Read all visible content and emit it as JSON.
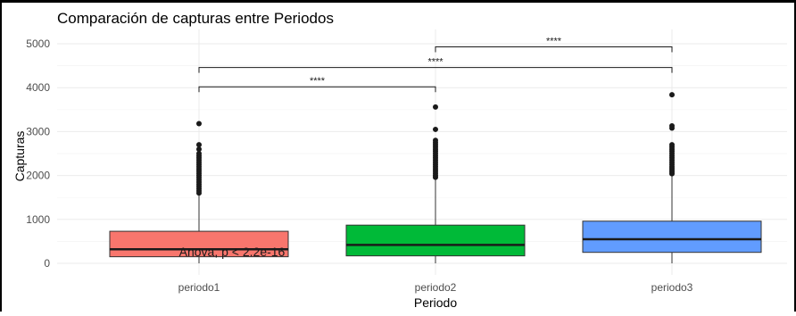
{
  "chart_data": {
    "type": "box",
    "title": "Comparación de capturas entre Periodos",
    "xlabel": "Periodo",
    "ylabel": "Capturas",
    "ylim": [
      0,
      5000
    ],
    "y_ticks": [
      0,
      1000,
      2000,
      3000,
      4000,
      5000
    ],
    "grid": true,
    "categories": [
      "periodo1",
      "periodo2",
      "periodo3"
    ],
    "boxes": [
      {
        "category": "periodo1",
        "color": "#F8766D",
        "q1": 150,
        "median": 320,
        "q3": 730,
        "whisker_low": 0,
        "whisker_high": 1560,
        "outliers": [
          1600,
          1650,
          1700,
          1750,
          1800,
          1850,
          1900,
          1950,
          2000,
          2050,
          2100,
          2150,
          2200,
          2250,
          2300,
          2350,
          2400,
          2450,
          2500,
          2600,
          2700,
          3180
        ]
      },
      {
        "category": "periodo2",
        "color": "#00BA38",
        "q1": 170,
        "median": 420,
        "q3": 870,
        "whisker_low": 0,
        "whisker_high": 1920,
        "outliers": [
          1960,
          2000,
          2050,
          2100,
          2150,
          2200,
          2250,
          2300,
          2350,
          2400,
          2450,
          2500,
          2550,
          2600,
          2650,
          2700,
          2750,
          2800,
          3050,
          3560
        ]
      },
      {
        "category": "periodo3",
        "color": "#619CFF",
        "q1": 250,
        "median": 550,
        "q3": 960,
        "whisker_low": 0,
        "whisker_high": 2000,
        "outliers": [
          2040,
          2080,
          2120,
          2160,
          2200,
          2250,
          2300,
          2350,
          2400,
          2450,
          2500,
          2550,
          2600,
          2650,
          2700,
          3080,
          3130,
          3840
        ]
      }
    ],
    "comparisons": [
      {
        "from": "periodo1",
        "to": "periodo2",
        "y": 4020,
        "label": "****"
      },
      {
        "from": "periodo1",
        "to": "periodo3",
        "y": 4460,
        "label": "****"
      },
      {
        "from": "periodo2",
        "to": "periodo3",
        "y": 4930,
        "label": "****"
      }
    ],
    "annotation": "Anova, p < 2.2e-16"
  }
}
